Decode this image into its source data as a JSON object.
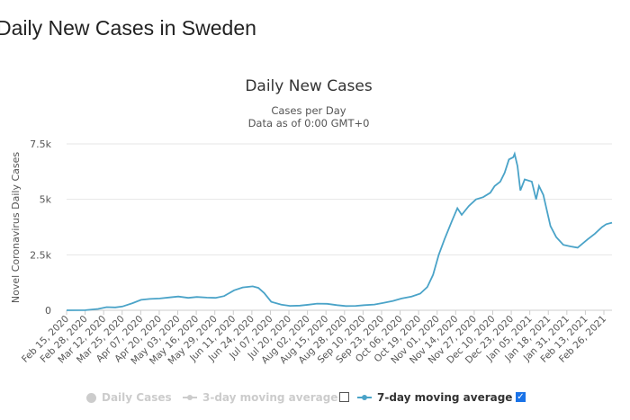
{
  "page": {
    "heading": "Daily New Cases in Sweden"
  },
  "legend": {
    "daily_cases": "Daily Cases",
    "avg3": "3-day moving average",
    "avg7": "7-day moving average",
    "checkmark": "✓"
  },
  "colors": {
    "line": "#4aa3c8",
    "grid": "#e6e6e6",
    "inactive": "#cccccc",
    "checkbox": "#1a73e8"
  },
  "chart_data": {
    "type": "line",
    "title": "Daily New Cases",
    "subtitle_lines": [
      "Cases per Day",
      "Data as of 0:00 GMT+0"
    ],
    "ylabel": "Novel Coronavirus Daily Cases",
    "xlabel": "",
    "ylim": [
      0,
      7500
    ],
    "yticks": [
      0,
      2500,
      5000,
      7500
    ],
    "ytick_labels": [
      "0",
      "2.5k",
      "5k",
      "7.5k"
    ],
    "x_start": "2020-02-15",
    "x_end": "2021-03-02",
    "xtick_labels": [
      "Feb 15, 2020",
      "Feb 28, 2020",
      "Mar 12, 2020",
      "Mar 25, 2020",
      "Apr 07, 2020",
      "Apr 20, 2020",
      "May 03, 2020",
      "May 16, 2020",
      "May 29, 2020",
      "Jun 11, 2020",
      "Jun 24, 2020",
      "Jul 07, 2020",
      "Jul 20, 2020",
      "Aug 02, 2020",
      "Aug 15, 2020",
      "Aug 28, 2020",
      "Sep 10, 2020",
      "Sep 23, 2020",
      "Oct 06, 2020",
      "Oct 19, 2020",
      "Nov 01, 2020",
      "Nov 14, 2020",
      "Nov 27, 2020",
      "Dec 10, 2020",
      "Dec 23, 2020",
      "Jan 05, 2021",
      "Jan 18, 2021",
      "Jan 31, 2021",
      "Feb 13, 2021",
      "Feb 26, 2021"
    ],
    "grid": true,
    "legend_position": "bottom",
    "series": [
      {
        "name": "7-day moving average",
        "points": [
          [
            "2020-02-15",
            0
          ],
          [
            "2020-02-28",
            5
          ],
          [
            "2020-03-08",
            60
          ],
          [
            "2020-03-14",
            140
          ],
          [
            "2020-03-20",
            130
          ],
          [
            "2020-03-25",
            170
          ],
          [
            "2020-04-01",
            320
          ],
          [
            "2020-04-07",
            470
          ],
          [
            "2020-04-13",
            510
          ],
          [
            "2020-04-20",
            530
          ],
          [
            "2020-04-27",
            580
          ],
          [
            "2020-05-03",
            620
          ],
          [
            "2020-05-10",
            560
          ],
          [
            "2020-05-16",
            600
          ],
          [
            "2020-05-23",
            570
          ],
          [
            "2020-05-29",
            560
          ],
          [
            "2020-06-04",
            640
          ],
          [
            "2020-06-11",
            900
          ],
          [
            "2020-06-17",
            1030
          ],
          [
            "2020-06-24",
            1080
          ],
          [
            "2020-06-28",
            1010
          ],
          [
            "2020-07-02",
            780
          ],
          [
            "2020-07-07",
            380
          ],
          [
            "2020-07-14",
            250
          ],
          [
            "2020-07-20",
            200
          ],
          [
            "2020-07-27",
            210
          ],
          [
            "2020-08-02",
            250
          ],
          [
            "2020-08-08",
            300
          ],
          [
            "2020-08-15",
            290
          ],
          [
            "2020-08-22",
            230
          ],
          [
            "2020-08-28",
            190
          ],
          [
            "2020-09-04",
            200
          ],
          [
            "2020-09-10",
            230
          ],
          [
            "2020-09-17",
            260
          ],
          [
            "2020-09-23",
            330
          ],
          [
            "2020-09-30",
            420
          ],
          [
            "2020-10-06",
            530
          ],
          [
            "2020-10-13",
            620
          ],
          [
            "2020-10-19",
            750
          ],
          [
            "2020-10-24",
            1050
          ],
          [
            "2020-10-28",
            1600
          ],
          [
            "2020-11-01",
            2500
          ],
          [
            "2020-11-05",
            3200
          ],
          [
            "2020-11-10",
            4000
          ],
          [
            "2020-11-14",
            4600
          ],
          [
            "2020-11-17",
            4300
          ],
          [
            "2020-11-22",
            4700
          ],
          [
            "2020-11-27",
            5000
          ],
          [
            "2020-12-02",
            5100
          ],
          [
            "2020-12-07",
            5300
          ],
          [
            "2020-12-10",
            5600
          ],
          [
            "2020-12-14",
            5800
          ],
          [
            "2020-12-17",
            6200
          ],
          [
            "2020-12-20",
            6800
          ],
          [
            "2020-12-23",
            6900
          ],
          [
            "2020-12-24",
            7050
          ],
          [
            "2020-12-26",
            6500
          ],
          [
            "2020-12-28",
            5400
          ],
          [
            "2020-12-31",
            5900
          ],
          [
            "2021-01-05",
            5800
          ],
          [
            "2021-01-08",
            5000
          ],
          [
            "2021-01-10",
            5600
          ],
          [
            "2021-01-13",
            5200
          ],
          [
            "2021-01-18",
            3800
          ],
          [
            "2021-01-22",
            3300
          ],
          [
            "2021-01-27",
            2950
          ],
          [
            "2021-02-01",
            2880
          ],
          [
            "2021-02-06",
            2820
          ],
          [
            "2021-02-13",
            3200
          ],
          [
            "2021-02-18",
            3450
          ],
          [
            "2021-02-23",
            3750
          ],
          [
            "2021-02-26",
            3880
          ],
          [
            "2021-03-02",
            3950
          ]
        ]
      }
    ]
  }
}
